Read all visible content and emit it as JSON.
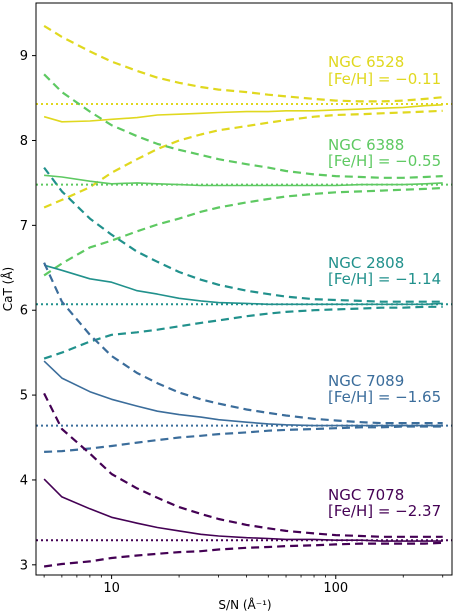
{
  "chart_data": {
    "type": "line",
    "xlabel": "S/N (Å⁻¹)",
    "ylabel": "CaT (Å)",
    "x_scale": "log",
    "xlim": [
      4.6,
      330
    ],
    "ylim": [
      2.88,
      9.62
    ],
    "x_ticks": [
      10,
      100
    ],
    "x_tick_labels": [
      "10",
      "100"
    ],
    "y_ticks": [
      3,
      4,
      5,
      6,
      7,
      8,
      9
    ],
    "y_tick_labels": [
      "3",
      "4",
      "5",
      "6",
      "7",
      "8",
      "9"
    ],
    "grid": false,
    "x": [
      5,
      6,
      8,
      10,
      13,
      16,
      20,
      25,
      30,
      40,
      50,
      60,
      80,
      100,
      130,
      160,
      200,
      250,
      300
    ],
    "clusters": [
      {
        "name": "NGC 6528",
        "metallicity": "[Fe/H] = −0.11",
        "color": "#e0d81f",
        "true_value": 8.43,
        "median": [
          8.28,
          8.22,
          8.23,
          8.25,
          8.27,
          8.3,
          8.31,
          8.32,
          8.33,
          8.34,
          8.34,
          8.35,
          8.35,
          8.36,
          8.37,
          8.38,
          8.39,
          8.41,
          8.42
        ],
        "upper": [
          9.35,
          9.22,
          9.05,
          8.93,
          8.82,
          8.74,
          8.68,
          8.63,
          8.6,
          8.57,
          8.54,
          8.52,
          8.49,
          8.47,
          8.46,
          8.46,
          8.47,
          8.49,
          8.51
        ],
        "lower": [
          7.21,
          7.3,
          7.45,
          7.62,
          7.78,
          7.9,
          8.0,
          8.07,
          8.12,
          8.17,
          8.21,
          8.24,
          8.28,
          8.3,
          8.31,
          8.32,
          8.33,
          8.34,
          8.35
        ]
      },
      {
        "name": "NGC 6388",
        "metallicity": "[Fe/H] = −0.55",
        "color": "#5ec962",
        "true_value": 7.48,
        "median": [
          7.59,
          7.57,
          7.52,
          7.49,
          7.5,
          7.49,
          7.48,
          7.47,
          7.47,
          7.47,
          7.47,
          7.47,
          7.47,
          7.47,
          7.48,
          7.48,
          7.48,
          7.49,
          7.5
        ],
        "upper": [
          8.78,
          8.57,
          8.34,
          8.18,
          8.05,
          7.96,
          7.89,
          7.83,
          7.78,
          7.72,
          7.68,
          7.64,
          7.6,
          7.58,
          7.57,
          7.56,
          7.56,
          7.57,
          7.58
        ],
        "lower": [
          6.41,
          6.55,
          6.74,
          6.82,
          6.93,
          7.01,
          7.08,
          7.16,
          7.21,
          7.27,
          7.31,
          7.34,
          7.37,
          7.39,
          7.4,
          7.41,
          7.42,
          7.43,
          7.44
        ]
      },
      {
        "name": "NGC 2808",
        "metallicity": "[Fe/H] = −1.14",
        "color": "#21918c",
        "true_value": 6.07,
        "median": [
          6.53,
          6.47,
          6.37,
          6.33,
          6.23,
          6.19,
          6.14,
          6.11,
          6.09,
          6.08,
          6.07,
          6.07,
          6.07,
          6.07,
          6.07,
          6.07,
          6.07,
          6.07,
          6.08
        ],
        "upper": [
          7.68,
          7.4,
          7.08,
          6.89,
          6.69,
          6.57,
          6.45,
          6.36,
          6.3,
          6.23,
          6.19,
          6.16,
          6.13,
          6.12,
          6.11,
          6.1,
          6.1,
          6.1,
          6.1
        ],
        "lower": [
          5.43,
          5.5,
          5.63,
          5.71,
          5.74,
          5.77,
          5.81,
          5.85,
          5.88,
          5.93,
          5.96,
          5.98,
          6.0,
          6.01,
          6.02,
          6.03,
          6.03,
          6.04,
          6.04
        ]
      },
      {
        "name": "NGC 7089",
        "metallicity": "[Fe/H] = −1.65",
        "color": "#3b6d9b",
        "true_value": 4.64,
        "median": [
          5.4,
          5.2,
          5.04,
          4.95,
          4.87,
          4.81,
          4.77,
          4.74,
          4.71,
          4.68,
          4.66,
          4.65,
          4.64,
          4.64,
          4.64,
          4.64,
          4.64,
          4.64,
          4.64
        ],
        "upper": [
          6.56,
          6.1,
          5.71,
          5.46,
          5.26,
          5.14,
          5.03,
          4.95,
          4.9,
          4.83,
          4.79,
          4.76,
          4.72,
          4.7,
          4.68,
          4.67,
          4.67,
          4.67,
          4.67
        ],
        "lower": [
          4.33,
          4.34,
          4.37,
          4.4,
          4.44,
          4.47,
          4.5,
          4.52,
          4.54,
          4.56,
          4.58,
          4.59,
          4.6,
          4.61,
          4.62,
          4.62,
          4.63,
          4.63,
          4.63
        ]
      },
      {
        "name": "NGC 7078",
        "metallicity": "[Fe/H] = −2.37",
        "color": "#440154",
        "true_value": 3.29,
        "median": [
          4.01,
          3.8,
          3.66,
          3.56,
          3.49,
          3.44,
          3.4,
          3.36,
          3.34,
          3.32,
          3.31,
          3.3,
          3.3,
          3.29,
          3.29,
          3.28,
          3.28,
          3.28,
          3.28
        ],
        "upper": [
          5.02,
          4.6,
          4.31,
          4.07,
          3.9,
          3.79,
          3.68,
          3.6,
          3.54,
          3.47,
          3.43,
          3.4,
          3.37,
          3.35,
          3.34,
          3.33,
          3.33,
          3.33,
          3.33
        ],
        "lower": [
          2.98,
          3.01,
          3.04,
          3.08,
          3.11,
          3.13,
          3.15,
          3.16,
          3.18,
          3.2,
          3.21,
          3.22,
          3.23,
          3.24,
          3.25,
          3.25,
          3.25,
          3.25,
          3.26
        ]
      }
    ]
  }
}
